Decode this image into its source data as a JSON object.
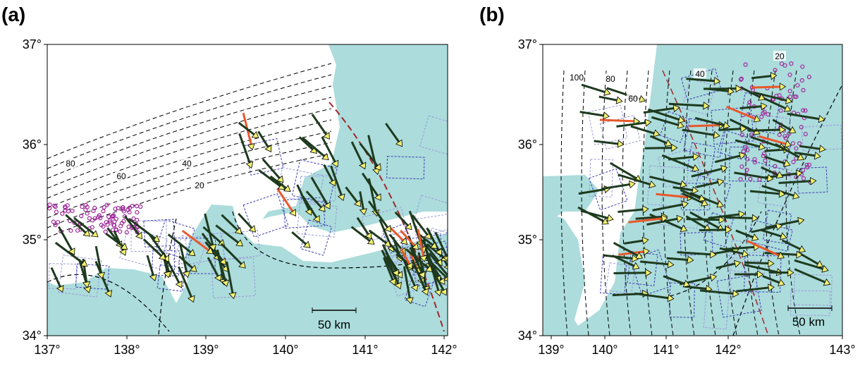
{
  "panels": [
    {
      "label": "(a)",
      "lat_ticks": [
        "37°",
        "36°",
        "35°",
        "34°"
      ],
      "lon_ticks": [
        "137°",
        "138°",
        "139°",
        "140°",
        "141°",
        "142°"
      ],
      "contour_labels": [
        "80",
        "60",
        "40",
        "20"
      ],
      "scale_bar": "50 km"
    },
    {
      "label": "(b)",
      "lat_ticks": [
        "37°",
        "36°",
        "35°",
        "34°"
      ],
      "lon_ticks": [
        "139°",
        "140°",
        "141°",
        "142°",
        "143°"
      ],
      "contour_labels": [
        "100",
        "80",
        "60",
        "40",
        "20"
      ],
      "scale_bar": "50 km"
    }
  ]
}
